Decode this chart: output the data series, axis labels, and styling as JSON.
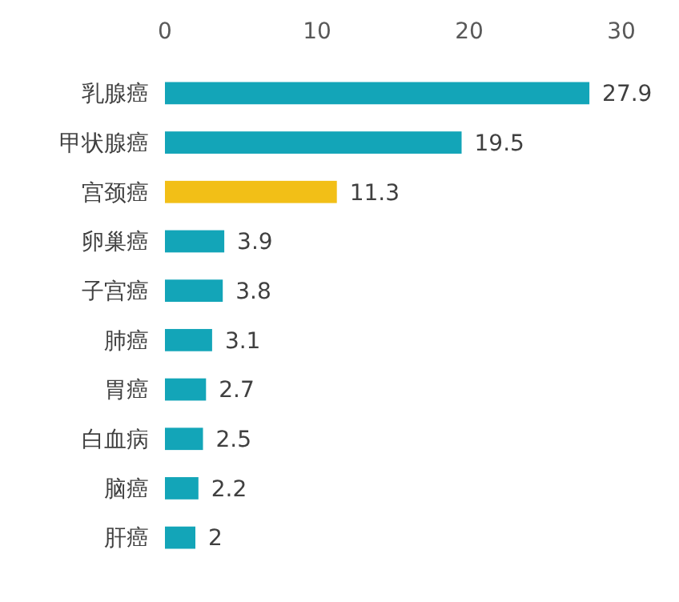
{
  "chart_data": {
    "type": "bar",
    "orientation": "horizontal",
    "categories": [
      "乳腺癌",
      "甲状腺癌",
      "宫颈癌",
      "卵巢癌",
      "子宫癌",
      "肺癌",
      "胃癌",
      "白血病",
      "脑癌",
      "肝癌"
    ],
    "values": [
      27.9,
      19.5,
      11.3,
      3.9,
      3.8,
      3.1,
      2.7,
      2.5,
      2.2,
      2
    ],
    "colors": [
      "#13a5b8",
      "#13a5b8",
      "#f2bf17",
      "#13a5b8",
      "#13a5b8",
      "#13a5b8",
      "#13a5b8",
      "#13a5b8",
      "#13a5b8",
      "#13a5b8"
    ],
    "xlim": [
      0,
      30
    ],
    "xticks": [
      0,
      10,
      20,
      30
    ],
    "data_labels": true,
    "grid": false
  }
}
